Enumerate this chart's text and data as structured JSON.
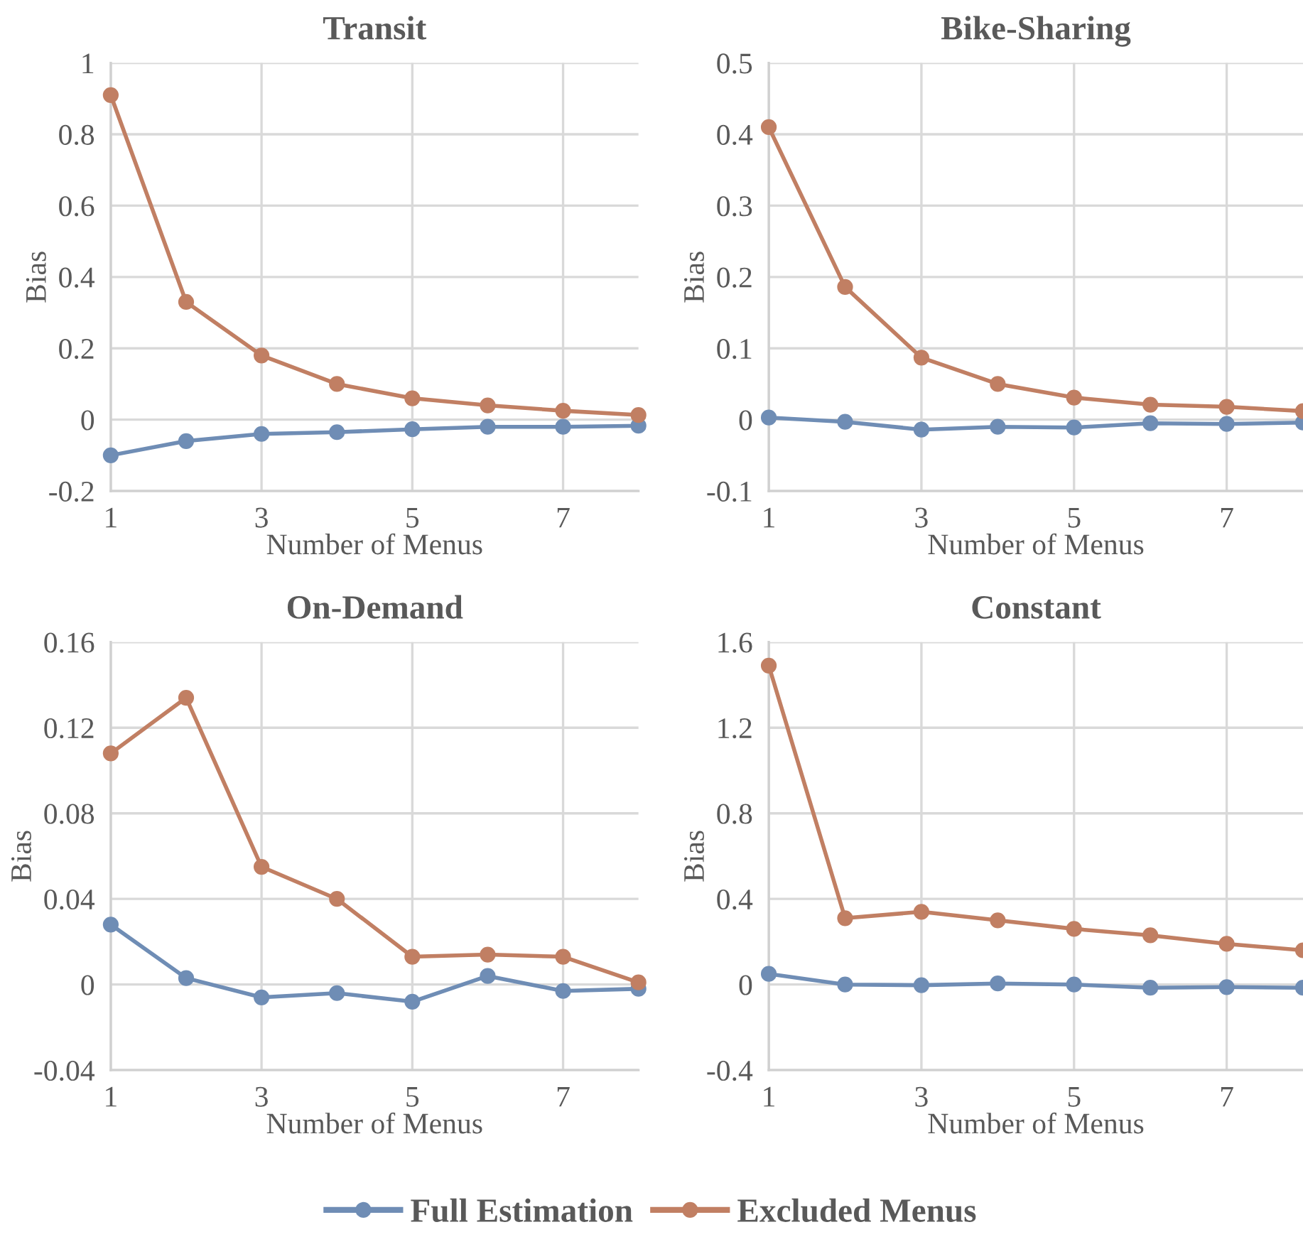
{
  "chart_data": [
    {
      "type": "line",
      "title": "Transit",
      "xlabel": "Number of Menus",
      "ylabel": "Bias",
      "x": [
        1,
        2,
        3,
        4,
        5,
        6,
        7,
        8
      ],
      "xlim": [
        1,
        8
      ],
      "xticks": [
        1,
        3,
        5,
        7
      ],
      "ylim": [
        -0.2,
        1
      ],
      "yticks": [
        -0.2,
        0,
        0.2,
        0.4,
        0.6,
        0.8,
        1
      ],
      "grid": true,
      "marker": "circle",
      "series": [
        {
          "color": "#6f8db5",
          "values": [
            -0.1,
            -0.06,
            -0.04,
            -0.035,
            -0.027,
            -0.02,
            -0.02,
            -0.017
          ]
        },
        {
          "color": "#c17f63",
          "values": [
            0.91,
            0.33,
            0.18,
            0.1,
            0.06,
            0.04,
            0.025,
            0.013
          ]
        }
      ]
    },
    {
      "type": "line",
      "title": "Bike-Sharing",
      "xlabel": "Number of Menus",
      "ylabel": "Bias",
      "x": [
        1,
        2,
        3,
        4,
        5,
        6,
        7,
        8
      ],
      "xlim": [
        1,
        8
      ],
      "xticks": [
        1,
        3,
        5,
        7
      ],
      "ylim": [
        -0.1,
        0.5
      ],
      "yticks": [
        -0.1,
        0,
        0.1,
        0.2,
        0.3,
        0.4,
        0.5
      ],
      "grid": true,
      "marker": "circle",
      "series": [
        {
          "color": "#6f8db5",
          "values": [
            0.003,
            -0.003,
            -0.014,
            -0.01,
            -0.011,
            -0.005,
            -0.006,
            -0.004
          ]
        },
        {
          "color": "#c17f63",
          "values": [
            0.41,
            0.186,
            0.087,
            0.05,
            0.031,
            0.021,
            0.018,
            0.012
          ]
        }
      ]
    },
    {
      "type": "line",
      "title": "On-Demand",
      "xlabel": "Number of Menus",
      "ylabel": "Bias",
      "x": [
        1,
        2,
        3,
        4,
        5,
        6,
        7,
        8
      ],
      "xlim": [
        1,
        8
      ],
      "xticks": [
        1,
        3,
        5,
        7
      ],
      "ylim": [
        -0.04,
        0.16
      ],
      "yticks": [
        -0.04,
        0,
        0.04,
        0.08,
        0.12,
        0.16
      ],
      "grid": true,
      "marker": "circle",
      "series": [
        {
          "color": "#6f8db5",
          "values": [
            0.028,
            0.003,
            -0.006,
            -0.004,
            -0.008,
            0.004,
            -0.003,
            -0.002
          ]
        },
        {
          "color": "#c17f63",
          "values": [
            0.108,
            0.134,
            0.055,
            0.04,
            0.013,
            0.014,
            0.013,
            0.001
          ]
        }
      ]
    },
    {
      "type": "line",
      "title": "Constant",
      "xlabel": "Number of Menus",
      "ylabel": "Bias",
      "x": [
        1,
        2,
        3,
        4,
        5,
        6,
        7,
        8
      ],
      "xlim": [
        1,
        8
      ],
      "xticks": [
        1,
        3,
        5,
        7
      ],
      "ylim": [
        -0.4,
        1.6
      ],
      "yticks": [
        -0.4,
        0,
        0.4,
        0.8,
        1.2,
        1.6
      ],
      "grid": true,
      "marker": "circle",
      "legend": "bottom",
      "series": [
        {
          "name": "Full Estimation",
          "color": "#6f8db5",
          "values": [
            0.05,
            0.0,
            -0.003,
            0.005,
            0.0,
            -0.015,
            -0.012,
            -0.015
          ]
        },
        {
          "name": "Excluded Menus",
          "color": "#c17f63",
          "values": [
            1.49,
            0.31,
            0.34,
            0.3,
            0.26,
            0.23,
            0.19,
            0.16
          ]
        }
      ]
    }
  ]
}
